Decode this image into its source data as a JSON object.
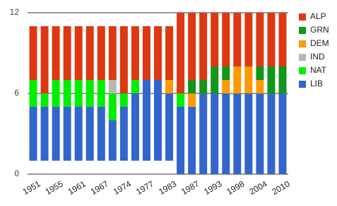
{
  "chart_data": {
    "type": "stacked_bar",
    "categories": [
      "1951",
      null,
      "1955",
      null,
      "1961",
      null,
      "1967",
      null,
      "1974",
      null,
      "1977",
      null,
      "1983",
      null,
      "1987",
      null,
      "1993",
      null,
      "1998",
      null,
      "2004",
      null,
      "2010"
    ],
    "series": [
      {
        "color": "none",
        "values": [
          1,
          1,
          1,
          1,
          1,
          1,
          1,
          1,
          1,
          1,
          1,
          1,
          1,
          0,
          0,
          0,
          0,
          0,
          0,
          0,
          0,
          0,
          0
        ]
      },
      {
        "name": "LIB",
        "color": "#3366cc",
        "values": [
          4,
          4,
          4,
          4,
          4,
          4,
          4,
          3,
          4,
          5,
          6,
          6,
          5,
          5,
          5,
          6,
          6,
          6,
          6,
          6,
          6,
          6,
          6
        ]
      },
      {
        "name": "NAT",
        "color": "#00ee00",
        "values": [
          2,
          1,
          2,
          2,
          2,
          2,
          2,
          2,
          1,
          1,
          0,
          0,
          0,
          1,
          0,
          0,
          0,
          0,
          0,
          0,
          0,
          0,
          0
        ]
      },
      {
        "name": "IND",
        "color": "#b7b7b7",
        "values": [
          0,
          0,
          0,
          0,
          0,
          0,
          0,
          1,
          0,
          0,
          0,
          0,
          0,
          0,
          0,
          0,
          0,
          0,
          0,
          0,
          0,
          0,
          0
        ]
      },
      {
        "name": "DEM",
        "color": "#ff9900",
        "values": [
          0,
          0,
          0,
          0,
          0,
          0,
          0,
          0,
          0,
          0,
          0,
          0,
          1,
          0,
          1,
          0,
          0,
          1,
          2,
          2,
          1,
          0,
          0
        ]
      },
      {
        "name": "GRN",
        "color": "#109618",
        "values": [
          0,
          0,
          0,
          0,
          0,
          0,
          0,
          0,
          0,
          0,
          0,
          0,
          0,
          0,
          1,
          1,
          2,
          1,
          0,
          0,
          1,
          2,
          2
        ]
      },
      {
        "name": "ALP",
        "color": "#dc3912",
        "values": [
          4,
          5,
          4,
          4,
          4,
          4,
          4,
          4,
          5,
          4,
          4,
          4,
          4,
          6,
          5,
          5,
          4,
          4,
          4,
          4,
          4,
          4,
          4
        ]
      }
    ],
    "ylim": [
      0,
      12
    ],
    "yticks": [
      0,
      6,
      12
    ],
    "grid": true,
    "legend": "right"
  }
}
